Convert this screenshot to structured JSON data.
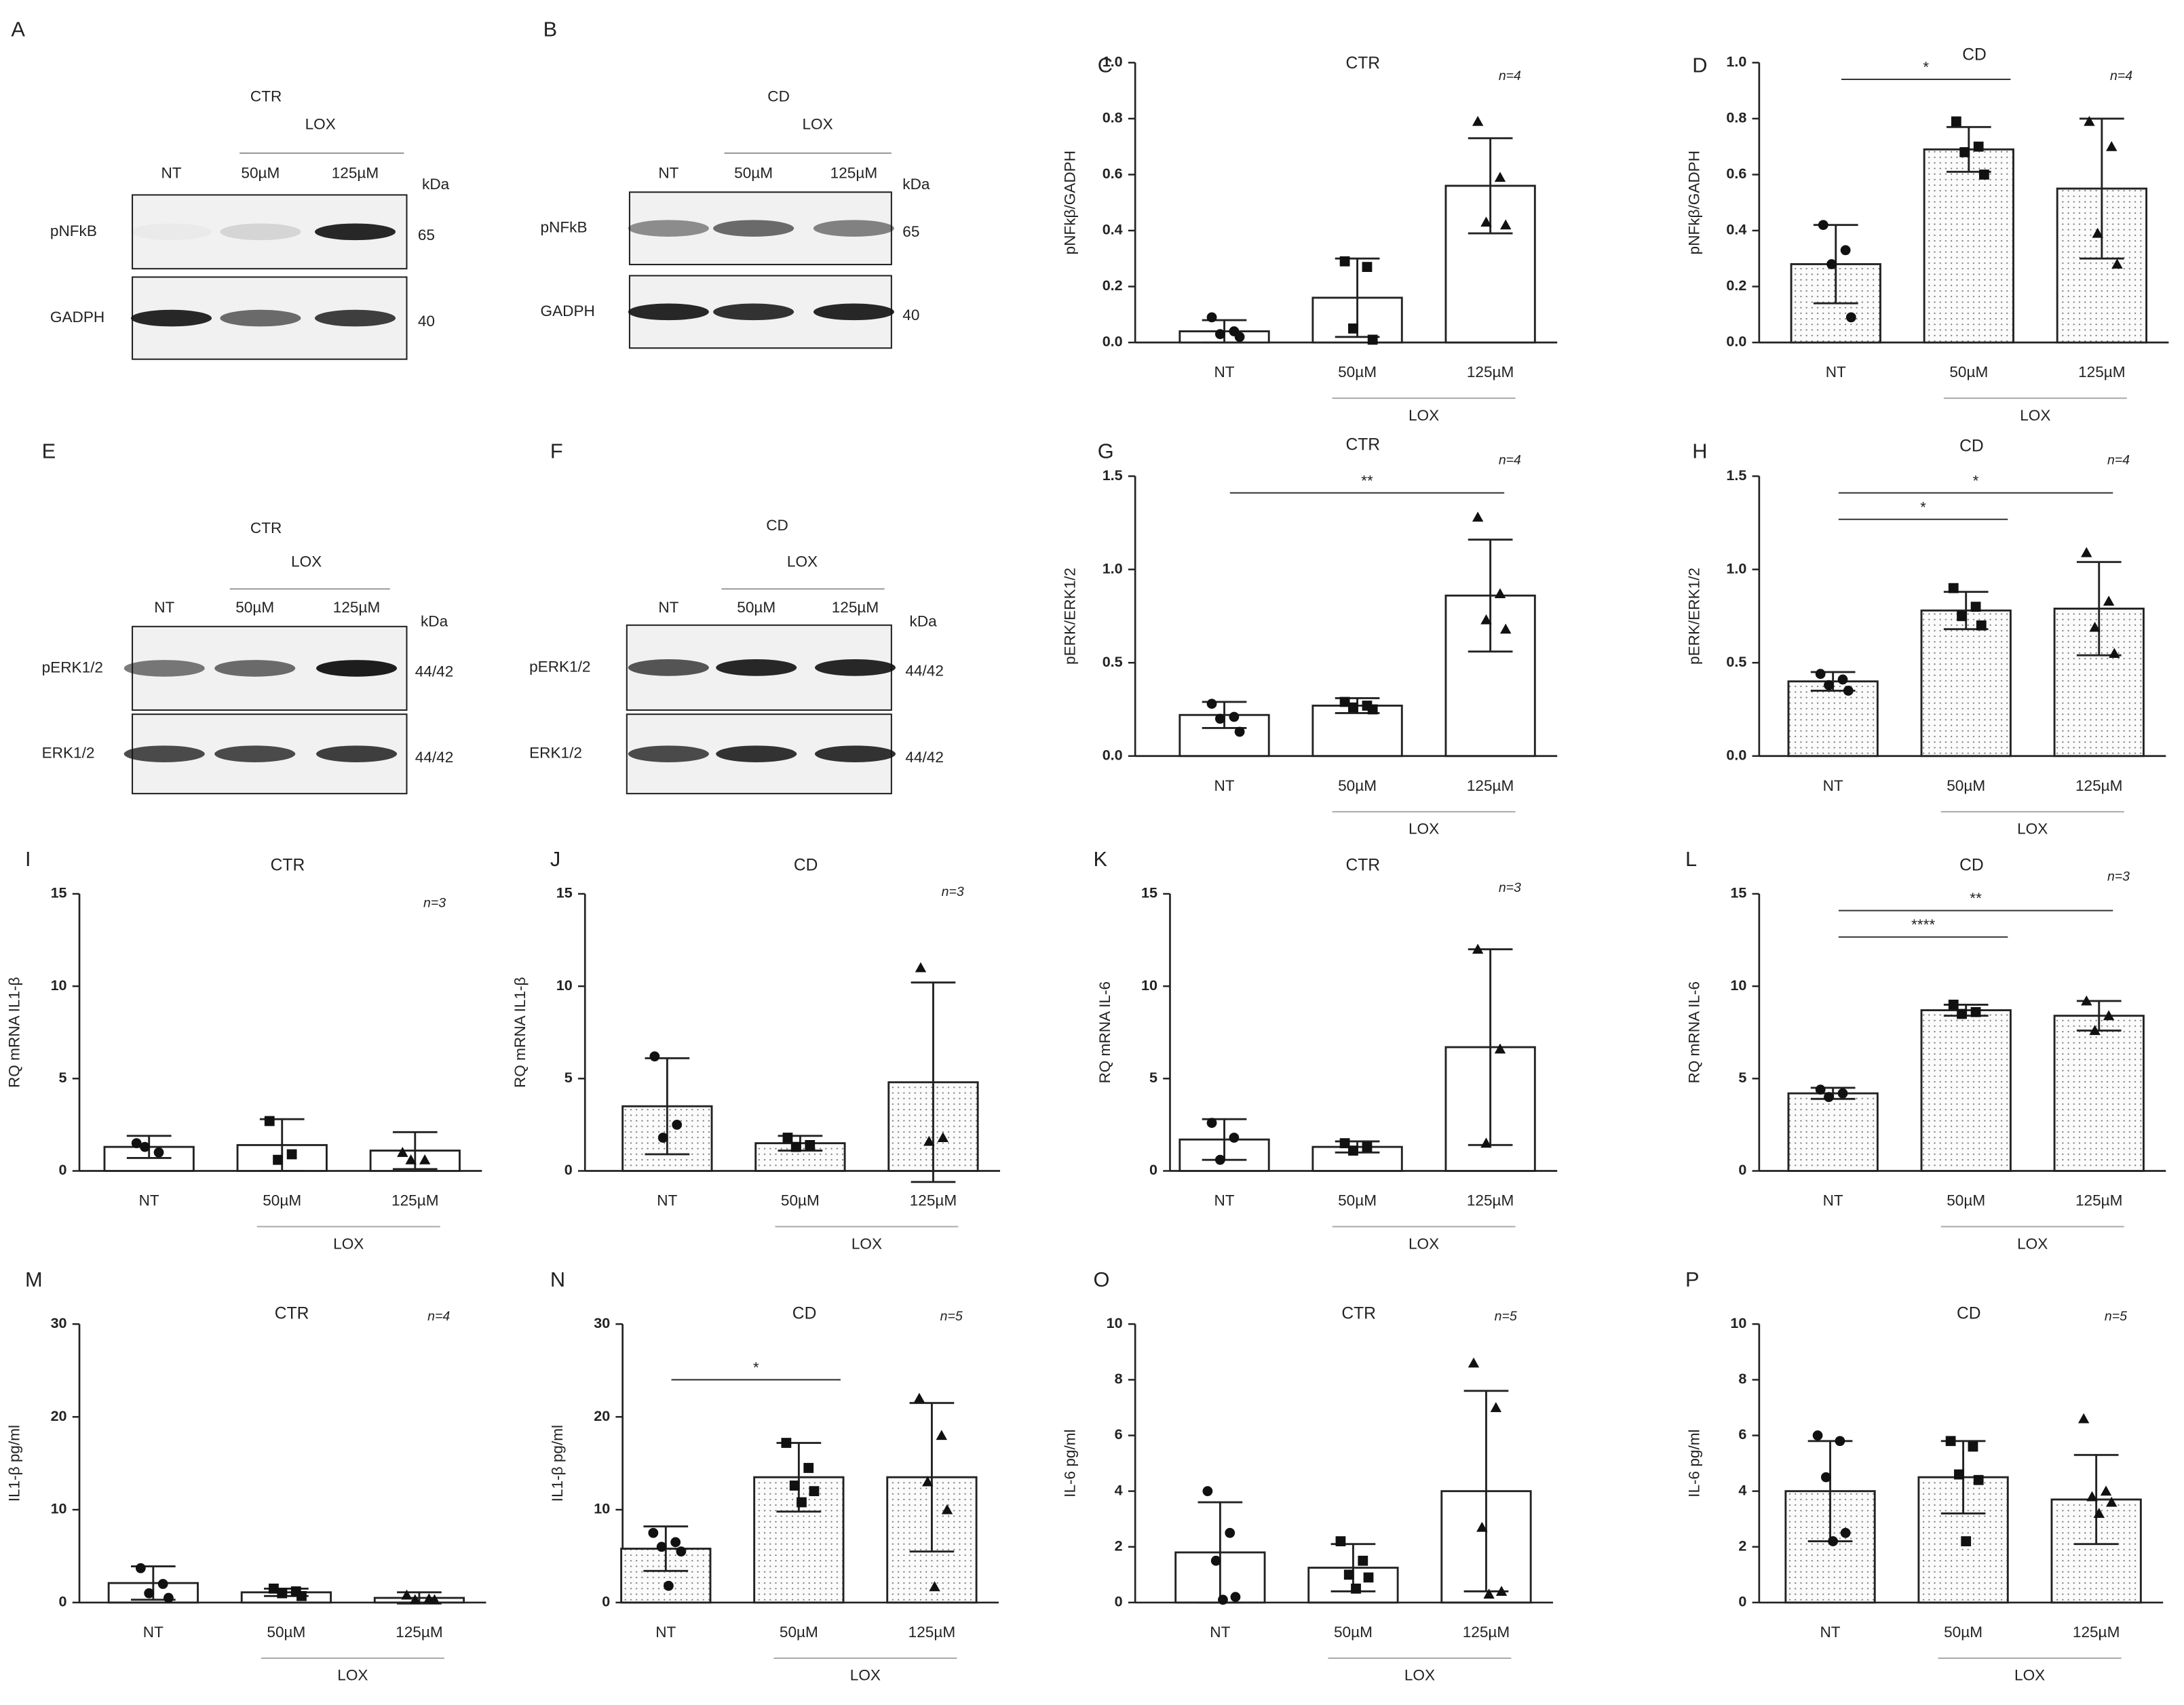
{
  "blots": [
    {
      "label": "A",
      "condition": "CTR",
      "group_label": "LOX",
      "lanes": [
        "NT",
        "50µM",
        "125µM"
      ],
      "unit": "kDa",
      "rows": [
        {
          "name": "pNFkB",
          "size": "65"
        },
        {
          "name": "GADPH",
          "size": "40"
        }
      ]
    },
    {
      "label": "B",
      "condition": "CD",
      "group_label": "LOX",
      "lanes": [
        "NT",
        "50µM",
        "125µM"
      ],
      "unit": "kDa",
      "rows": [
        {
          "name": "pNFkB",
          "size": "65"
        },
        {
          "name": "GADPH",
          "size": "40"
        }
      ]
    },
    {
      "label": "E",
      "condition": "CTR",
      "group_label": "LOX",
      "lanes": [
        "NT",
        "50µM",
        "125µM"
      ],
      "unit": "kDa",
      "rows": [
        {
          "name": "pERK1/2",
          "size": "44/42"
        },
        {
          "name": "ERK1/2",
          "size": "44/42"
        }
      ]
    },
    {
      "label": "F",
      "condition": "CD",
      "group_label": "LOX",
      "lanes": [
        "NT",
        "50µM",
        "125µM"
      ],
      "unit": "kDa",
      "rows": [
        {
          "name": "pERK1/2",
          "size": "44/42"
        },
        {
          "name": "ERK1/2",
          "size": "44/42"
        }
      ]
    }
  ],
  "markers": [
    "circle",
    "square",
    "triangle"
  ],
  "chart_data": [
    {
      "type": "bar",
      "label": "C",
      "title": "CTR",
      "annotation": "n=4",
      "y_label": "pNFkβ/GADPH",
      "categories": [
        "NT",
        "50µM",
        "125µM"
      ],
      "group_label": "LOX",
      "values": [
        0.04,
        0.16,
        0.56
      ],
      "errors": [
        0.04,
        0.14,
        0.17
      ],
      "points": [
        [
          0.09,
          0.04,
          0.03,
          0.02
        ],
        [
          0.29,
          0.27,
          0.05,
          0.01
        ],
        [
          0.79,
          0.59,
          0.43,
          0.42
        ]
      ],
      "ylim": [
        0,
        1
      ],
      "yticks": [
        {
          "value": 0,
          "label": "0.0"
        },
        0.2,
        0.4,
        0.6,
        0.8,
        {
          "value": 1,
          "label": "1.0"
        }
      ],
      "hatch": false,
      "significance": []
    },
    {
      "type": "bar",
      "label": "D",
      "title": "CD",
      "annotation": "n=4",
      "y_label": "pNFkβ/GADPH",
      "categories": [
        "NT",
        "50µM",
        "125µM"
      ],
      "group_label": "LOX",
      "values": [
        0.28,
        0.69,
        0.55
      ],
      "errors": [
        0.14,
        0.08,
        0.25
      ],
      "points": [
        [
          0.42,
          0.33,
          0.28,
          0.09
        ],
        [
          0.79,
          0.7,
          0.68,
          0.6
        ],
        [
          0.79,
          0.7,
          0.39,
          0.28
        ]
      ],
      "ylim": [
        0,
        1
      ],
      "yticks": [
        {
          "value": 0,
          "label": "0.0"
        },
        0.2,
        0.4,
        0.6,
        0.8,
        {
          "value": 1,
          "label": "1.0"
        }
      ],
      "hatch": true,
      "significance": [
        {
          "pair": [
            0,
            1
          ],
          "text": "*"
        }
      ]
    },
    {
      "type": "bar",
      "label": "G",
      "title": "CTR",
      "annotation": "n=4",
      "y_label": "pERK/ERK1/2",
      "categories": [
        "NT",
        "50µM",
        "125µM"
      ],
      "group_label": "LOX",
      "values": [
        0.22,
        0.27,
        0.86
      ],
      "errors": [
        0.07,
        0.04,
        0.3
      ],
      "points": [
        [
          0.28,
          0.21,
          0.2,
          0.13
        ],
        [
          0.29,
          0.27,
          0.26,
          0.25
        ],
        [
          1.28,
          0.87,
          0.73,
          0.68
        ]
      ],
      "ylim": [
        0,
        1.5
      ],
      "yticks": [
        {
          "value": 0,
          "label": "0.0"
        },
        0.5,
        {
          "value": 1,
          "label": "1.0"
        },
        1.5
      ],
      "hatch": false,
      "significance": [
        {
          "pair": [
            0,
            2
          ],
          "text": "**"
        }
      ]
    },
    {
      "type": "bar",
      "label": "H",
      "title": "CD",
      "annotation": "n=4",
      "y_label": "pERK/ERK1/2",
      "categories": [
        "NT",
        "50µM",
        "125µM"
      ],
      "group_label": "LOX",
      "values": [
        0.4,
        0.78,
        0.79
      ],
      "errors": [
        0.05,
        0.1,
        0.25
      ],
      "points": [
        [
          0.44,
          0.41,
          0.38,
          0.35
        ],
        [
          0.9,
          0.8,
          0.75,
          0.7
        ],
        [
          1.09,
          0.83,
          0.69,
          0.55
        ]
      ],
      "ylim": [
        0,
        1.5
      ],
      "yticks": [
        {
          "value": 0,
          "label": "0.0"
        },
        0.5,
        {
          "value": 1,
          "label": "1.0"
        },
        1.5
      ],
      "hatch": true,
      "significance": [
        {
          "pair": [
            0,
            2
          ],
          "text": "*"
        },
        {
          "pair": [
            0,
            1
          ],
          "text": "*"
        }
      ]
    },
    {
      "type": "bar",
      "label": "I",
      "title": "CTR",
      "annotation": "n=3",
      "y_label": "RQ mRNA IL1-β",
      "categories": [
        "NT",
        "50µM",
        "125µM"
      ],
      "group_label": "LOX",
      "values": [
        1.3,
        1.4,
        1.1
      ],
      "errors": [
        0.6,
        1.4,
        1.0
      ],
      "points": [
        [
          1.5,
          1.0,
          1.3
        ],
        [
          2.7,
          0.9,
          0.6
        ],
        [
          1.0,
          0.6,
          0.6
        ]
      ],
      "ylim": [
        0,
        15
      ],
      "yticks": [
        0,
        5,
        10,
        15
      ],
      "hatch": false,
      "significance": []
    },
    {
      "type": "bar",
      "label": "J",
      "title": "CD",
      "annotation": "n=3",
      "y_label": "RQ mRNA IL1-β",
      "categories": [
        "NT",
        "50µM",
        "125µM"
      ],
      "group_label": "LOX",
      "values": [
        3.5,
        1.5,
        4.8
      ],
      "errors": [
        2.6,
        0.4,
        5.4
      ],
      "points": [
        [
          6.2,
          2.5,
          1.8
        ],
        [
          1.8,
          1.4,
          1.3
        ],
        [
          11.0,
          1.8,
          1.6
        ]
      ],
      "ylim": [
        0,
        15
      ],
      "yticks": [
        0,
        5,
        10,
        15
      ],
      "hatch": true,
      "significance": []
    },
    {
      "type": "bar",
      "label": "K",
      "title": "CTR",
      "annotation": "n=3",
      "y_label": "RQ mRNA IL-6",
      "categories": [
        "NT",
        "50µM",
        "125µM"
      ],
      "group_label": "LOX",
      "values": [
        1.7,
        1.3,
        6.7
      ],
      "errors": [
        1.1,
        0.3,
        5.3
      ],
      "points": [
        [
          2.6,
          1.8,
          0.6
        ],
        [
          1.5,
          1.3,
          1.1
        ],
        [
          12.0,
          6.6,
          1.5
        ]
      ],
      "ylim": [
        0,
        15
      ],
      "yticks": [
        0,
        5,
        10,
        15
      ],
      "hatch": false,
      "significance": []
    },
    {
      "type": "bar",
      "label": "L",
      "title": "CD",
      "annotation": "n=3",
      "y_label": "RQ mRNA IL-6",
      "categories": [
        "NT",
        "50µM",
        "125µM"
      ],
      "group_label": "LOX",
      "values": [
        4.2,
        8.7,
        8.4
      ],
      "errors": [
        0.3,
        0.3,
        0.8
      ],
      "points": [
        [
          4.4,
          4.2,
          4.0
        ],
        [
          9.0,
          8.6,
          8.5
        ],
        [
          9.2,
          8.4,
          7.6
        ]
      ],
      "ylim": [
        0,
        15
      ],
      "yticks": [
        0,
        5,
        10,
        15
      ],
      "hatch": true,
      "significance": [
        {
          "pair": [
            0,
            2
          ],
          "text": "**"
        },
        {
          "pair": [
            0,
            1
          ],
          "text": "****"
        }
      ]
    },
    {
      "type": "bar",
      "label": "M",
      "title": "CTR",
      "annotation": "n=4",
      "y_label": "IL1-β pg/ml",
      "categories": [
        "NT",
        "50µM",
        "125µM"
      ],
      "group_label": "LOX",
      "values": [
        2.1,
        1.1,
        0.5
      ],
      "errors": [
        1.8,
        0.4,
        0.6
      ],
      "points": [
        [
          3.7,
          2.0,
          1.0,
          0.5
        ],
        [
          1.5,
          1.2,
          1.0,
          0.7
        ],
        [
          0.8,
          0.4,
          0.3,
          0.3
        ]
      ],
      "ylim": [
        0,
        30
      ],
      "yticks": [
        0,
        10,
        20,
        30
      ],
      "hatch": false,
      "significance": []
    },
    {
      "type": "bar",
      "label": "N",
      "title": "CD",
      "annotation": "n=5",
      "y_label": "IL1-β pg/ml",
      "categories": [
        "NT",
        "50µM",
        "125µM"
      ],
      "group_label": "LOX",
      "values": [
        5.8,
        13.5,
        13.5
      ],
      "errors": [
        2.4,
        3.7,
        8.0
      ],
      "points": [
        [
          7.5,
          6.5,
          6.0,
          5.5,
          1.8
        ],
        [
          17.2,
          14.5,
          12.6,
          12.0,
          10.8
        ],
        [
          22.0,
          18.0,
          13.0,
          10.0,
          1.7
        ]
      ],
      "ylim": [
        0,
        30
      ],
      "yticks": [
        0,
        10,
        20,
        30
      ],
      "hatch": true,
      "significance": [
        {
          "pair": [
            0,
            1
          ],
          "text": "*"
        }
      ]
    },
    {
      "type": "bar",
      "label": "O",
      "title": "CTR",
      "annotation": "n=5",
      "y_label": "IL-6 pg/ml",
      "categories": [
        "NT",
        "50µM",
        "125µM"
      ],
      "group_label": "LOX",
      "values": [
        1.8,
        1.25,
        4.0
      ],
      "errors": [
        1.8,
        0.85,
        3.6
      ],
      "points": [
        [
          4.0,
          2.5,
          1.5,
          0.2,
          0.1
        ],
        [
          2.2,
          1.5,
          1.0,
          0.9,
          0.5
        ],
        [
          8.6,
          7.0,
          2.7,
          0.4,
          0.3
        ]
      ],
      "ylim": [
        0,
        10
      ],
      "yticks": [
        0,
        2,
        4,
        6,
        8,
        10
      ],
      "hatch": false,
      "significance": []
    },
    {
      "type": "bar",
      "label": "P",
      "title": "CD",
      "annotation": "n=5",
      "y_label": "IL-6 pg/ml",
      "categories": [
        "NT",
        "50µM",
        "125µM"
      ],
      "group_label": "LOX",
      "values": [
        4.0,
        4.5,
        3.7
      ],
      "errors": [
        1.8,
        1.3,
        1.6
      ],
      "points": [
        [
          6.0,
          5.8,
          4.5,
          2.5,
          2.2
        ],
        [
          5.8,
          5.6,
          4.6,
          4.4,
          2.2
        ],
        [
          6.6,
          4.0,
          3.8,
          3.6,
          3.2
        ]
      ],
      "ylim": [
        0,
        10
      ],
      "yticks": [
        0,
        2,
        4,
        6,
        8,
        10
      ],
      "hatch": true,
      "significance": []
    }
  ]
}
